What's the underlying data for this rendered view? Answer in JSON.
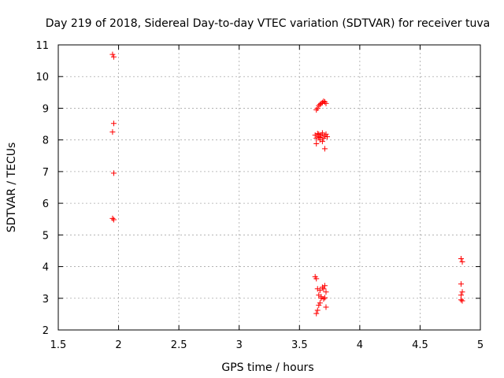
{
  "chart_data": {
    "type": "scatter",
    "title": "Day 219 of 2018, Sidereal Day-to-day VTEC variation (SDTVAR) for receiver tuva",
    "xlabel": "GPS time / hours",
    "ylabel": "SDTVAR / TECUs",
    "xlim": [
      1.5,
      5
    ],
    "ylim": [
      2,
      11
    ],
    "xticks": [
      1.5,
      2,
      2.5,
      3,
      3.5,
      4,
      4.5,
      5
    ],
    "xtick_labels": [
      "1.5",
      "2",
      "2.5",
      "3",
      "3.5",
      "4",
      "4.5",
      "5"
    ],
    "yticks": [
      2,
      3,
      4,
      5,
      6,
      7,
      8,
      9,
      10,
      11
    ],
    "ytick_labels": [
      "2",
      "3",
      "4",
      "5",
      "6",
      "7",
      "8",
      "9",
      "10",
      "11"
    ],
    "grid": true,
    "marker_color": "#ff0000",
    "series": [
      {
        "name": "SDTVAR",
        "points": [
          [
            1.95,
            10.7
          ],
          [
            1.96,
            10.62
          ],
          [
            1.96,
            8.52
          ],
          [
            1.95,
            8.25
          ],
          [
            1.96,
            6.95
          ],
          [
            1.95,
            5.52
          ],
          [
            1.96,
            5.48
          ],
          [
            3.64,
            8.95
          ],
          [
            3.65,
            9.0
          ],
          [
            3.66,
            9.08
          ],
          [
            3.67,
            9.12
          ],
          [
            3.68,
            9.15
          ],
          [
            3.69,
            9.18
          ],
          [
            3.7,
            9.22
          ],
          [
            3.71,
            9.2
          ],
          [
            3.72,
            9.15
          ],
          [
            3.63,
            8.15
          ],
          [
            3.64,
            8.05
          ],
          [
            3.65,
            8.2
          ],
          [
            3.66,
            8.1
          ],
          [
            3.67,
            8.0
          ],
          [
            3.68,
            8.15
          ],
          [
            3.69,
            7.95
          ],
          [
            3.7,
            8.05
          ],
          [
            3.71,
            8.12
          ],
          [
            3.72,
            8.18
          ],
          [
            3.73,
            8.1
          ],
          [
            3.64,
            7.88
          ],
          [
            3.66,
            8.18
          ],
          [
            3.71,
            7.72
          ],
          [
            3.69,
            8.22
          ],
          [
            3.67,
            8.08
          ],
          [
            3.63,
            3.68
          ],
          [
            3.64,
            3.62
          ],
          [
            3.65,
            3.3
          ],
          [
            3.66,
            3.1
          ],
          [
            3.67,
            3.25
          ],
          [
            3.68,
            3.0
          ],
          [
            3.69,
            3.35
          ],
          [
            3.7,
            3.3
          ],
          [
            3.71,
            3.4
          ],
          [
            3.72,
            3.2
          ],
          [
            3.7,
            2.98
          ],
          [
            3.71,
            3.02
          ],
          [
            3.66,
            2.78
          ],
          [
            3.67,
            2.85
          ],
          [
            3.65,
            2.62
          ],
          [
            3.64,
            2.52
          ],
          [
            3.72,
            2.72
          ],
          [
            3.68,
            3.05
          ],
          [
            4.84,
            4.25
          ],
          [
            4.85,
            4.15
          ],
          [
            4.84,
            3.45
          ],
          [
            4.85,
            3.2
          ],
          [
            4.84,
            3.1
          ],
          [
            4.84,
            2.95
          ],
          [
            4.85,
            2.92
          ]
        ]
      }
    ]
  }
}
